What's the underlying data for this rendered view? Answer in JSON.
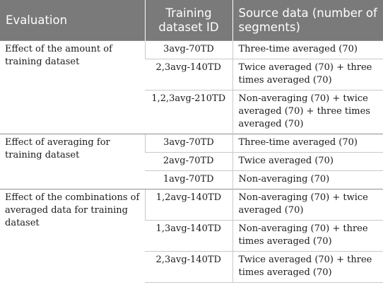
{
  "header": {
    "evaluation": "Evaluation",
    "training_id": "Training dataset ID",
    "source": "Source data (number of segments)"
  },
  "groups": [
    {
      "evaluation": "Effect of the amount of training dataset",
      "rows": [
        {
          "id": "3avg-70TD",
          "source": "Three-time averaged (70)"
        },
        {
          "id": "2,3avg-140TD",
          "source": "Twice averaged (70) + three times averaged (70)"
        },
        {
          "id": "1,2,3avg-210TD",
          "source": "Non-averaging (70) + twice averaged (70) + three times averaged (70)"
        }
      ]
    },
    {
      "evaluation": "Effect of averaging for training dataset",
      "rows": [
        {
          "id": "3avg-70TD",
          "source": "Three-time averaged (70)"
        },
        {
          "id": "2avg-70TD",
          "source": "Twice averaged (70)"
        },
        {
          "id": "1avg-70TD",
          "source": "Non-averaging (70)"
        }
      ]
    },
    {
      "evaluation": "Effect of the combinations of averaged data for training dataset",
      "rows": [
        {
          "id": "1,2avg-140TD",
          "source": "Non-averaging (70) + twice averaged (70)"
        },
        {
          "id": "1,3avg-140TD",
          "source": "Non-averaging (70) + three times averaged (70)"
        },
        {
          "id": "2,3avg-140TD",
          "source": "Twice averaged (70) + three times averaged (70)"
        }
      ]
    }
  ]
}
